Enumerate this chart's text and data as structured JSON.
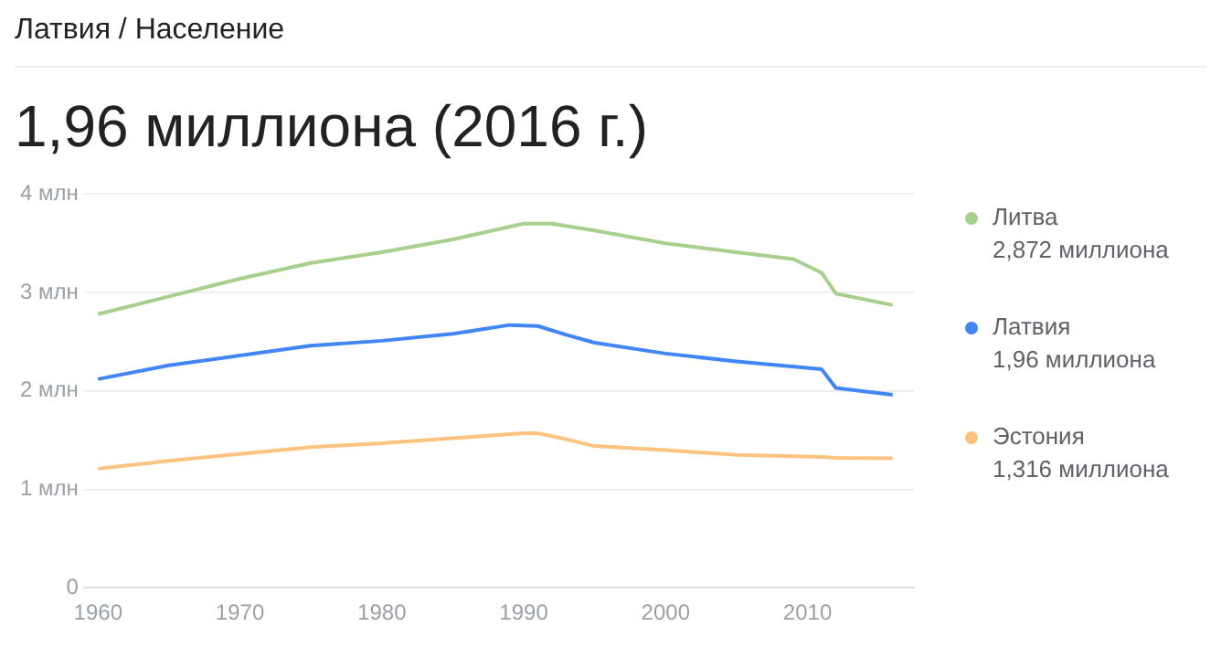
{
  "chart_data": {
    "type": "line",
    "subtitle": "Латвия / Население",
    "title": "1,96 миллиона (2016 г.)",
    "series": [
      {
        "name": "Литва",
        "color": "#a8d08d",
        "x": [
          1960,
          1965,
          1970,
          1975,
          1980,
          1985,
          1990,
          1992,
          1995,
          2000,
          2005,
          2009,
          2011,
          2012,
          2016
        ],
        "values": [
          2.78,
          2.96,
          3.14,
          3.3,
          3.41,
          3.54,
          3.7,
          3.7,
          3.63,
          3.5,
          3.41,
          3.34,
          3.2,
          2.99,
          2.872
        ]
      },
      {
        "name": "Латвия",
        "color": "#4285f4",
        "x": [
          1960,
          1965,
          1970,
          1975,
          1980,
          1985,
          1989,
          1991,
          1993,
          1995,
          2000,
          2005,
          2011,
          2012,
          2016
        ],
        "values": [
          2.12,
          2.26,
          2.36,
          2.46,
          2.51,
          2.58,
          2.67,
          2.66,
          2.57,
          2.49,
          2.38,
          2.3,
          2.22,
          2.03,
          1.96
        ]
      },
      {
        "name": "Эстония",
        "color": "#fbc37f",
        "x": [
          1960,
          1965,
          1970,
          1975,
          1980,
          1985,
          1990,
          1991,
          1993,
          1995,
          2000,
          2005,
          2011,
          2012,
          2016
        ],
        "values": [
          1.21,
          1.29,
          1.36,
          1.43,
          1.47,
          1.52,
          1.57,
          1.57,
          1.51,
          1.44,
          1.4,
          1.35,
          1.33,
          1.32,
          1.316
        ]
      }
    ],
    "annotations": [
      "2,872 миллиона",
      "1,96 миллиона",
      "1,316 миллиона"
    ],
    "xlim": [
      1959,
      2017.5
    ],
    "xticks": [
      1960,
      1970,
      1980,
      1990,
      2000,
      2010
    ],
    "ylim": [
      0,
      4
    ],
    "yticks": [
      {
        "value": 0,
        "label": "0"
      },
      {
        "value": 1,
        "label": "1 млн"
      },
      {
        "value": 2,
        "label": "2 млн"
      },
      {
        "value": 3,
        "label": "3 млн"
      },
      {
        "value": 4,
        "label": "4 млн"
      }
    ],
    "grid": "y",
    "legend": "right",
    "marker": "none",
    "line_style": "solid"
  }
}
